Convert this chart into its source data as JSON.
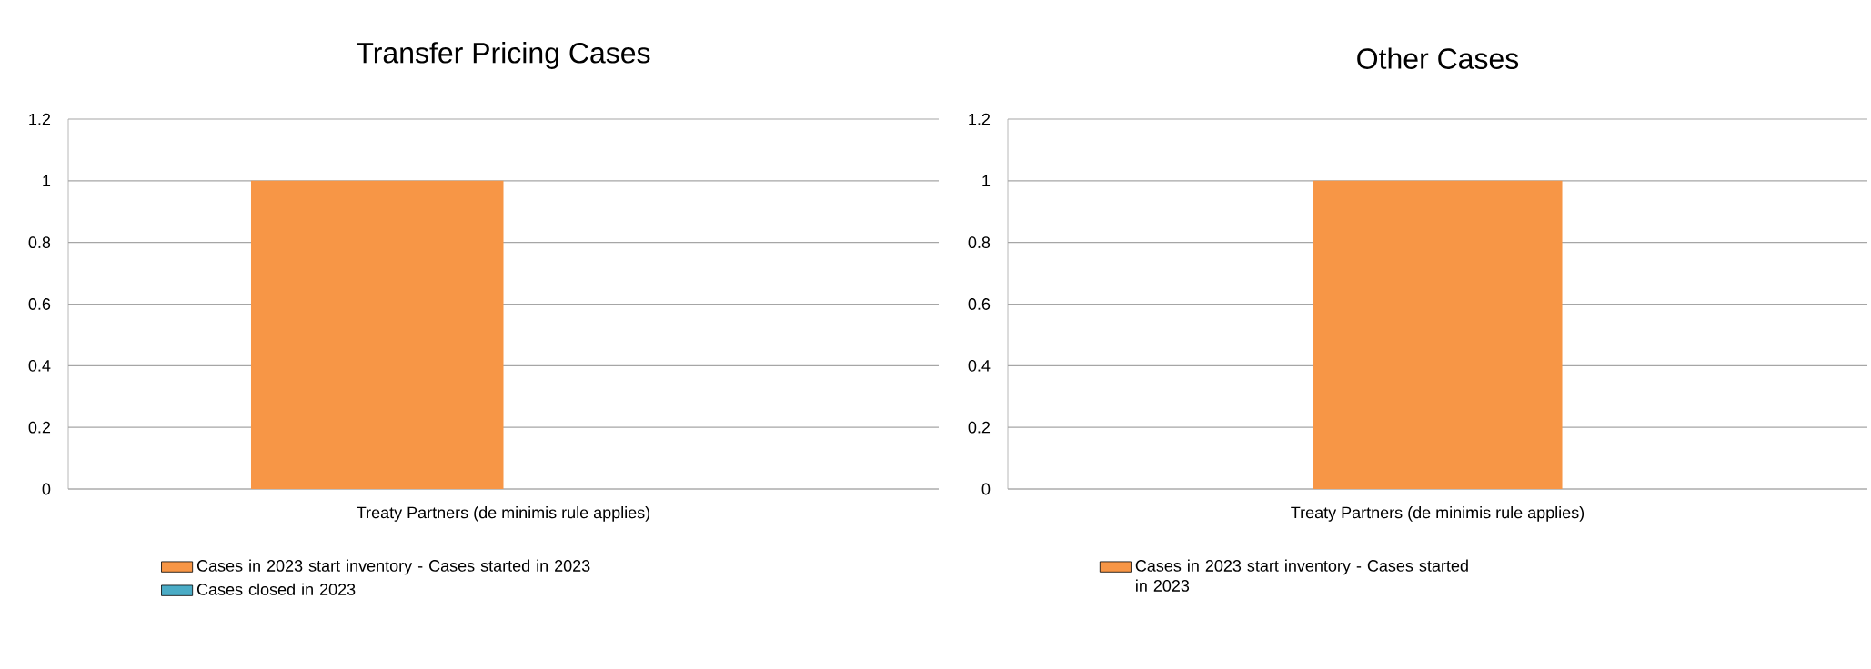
{
  "chart_data": [
    {
      "type": "bar",
      "title": "Transfer Pricing Cases",
      "categories": [
        "Treaty Partners (de minimis rule applies)"
      ],
      "series": [
        {
          "name": "Cases in 2023 start inventory - Cases started in 2023",
          "color": "#f79646",
          "values": [
            1
          ]
        },
        {
          "name": "Cases closed in 2023",
          "color": "#4bacc6",
          "values": [
            0
          ]
        }
      ],
      "ylim": [
        0,
        1.2
      ],
      "yticks": [
        0,
        0.2,
        0.4,
        0.6,
        0.8,
        1,
        1.2
      ],
      "grid": "y",
      "legend": "bottom"
    },
    {
      "type": "bar",
      "title": "Other Cases",
      "categories": [
        "Treaty Partners (de minimis rule applies)"
      ],
      "series": [
        {
          "name": "Cases in 2023 start inventory - Cases started in 2023",
          "color": "#f79646",
          "values": [
            1
          ]
        }
      ],
      "ylim": [
        0,
        1.2
      ],
      "yticks": [
        0,
        0.2,
        0.4,
        0.6,
        0.8,
        1,
        1.2
      ],
      "grid": "y",
      "legend": "bottom"
    }
  ]
}
